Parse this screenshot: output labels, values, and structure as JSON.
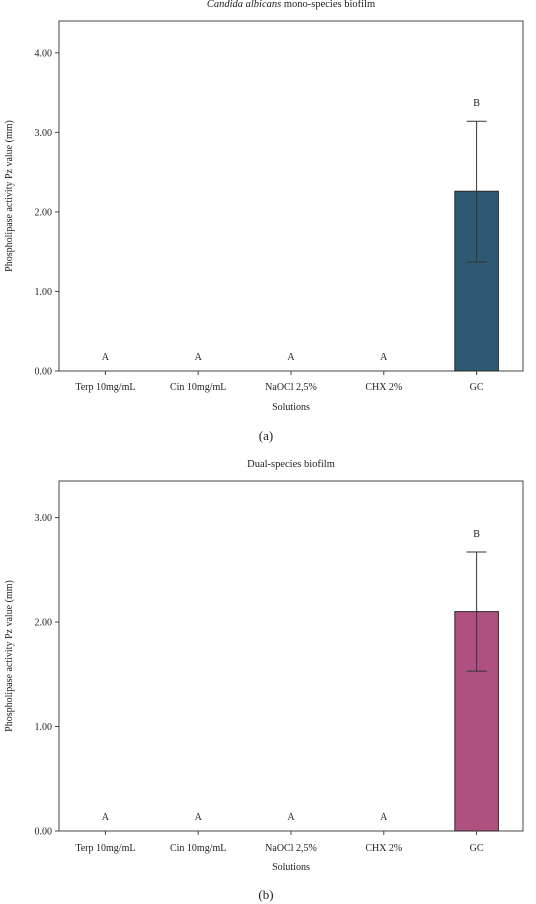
{
  "chart_data": [
    {
      "type": "bar",
      "title": "Candida albicans mono-species biofilm",
      "title_italic": "Candida albicans",
      "title_rest": " mono-species biofilm",
      "xlabel": "Solutions",
      "ylabel": "Phospholipase activity Pz value (mm)",
      "categories": [
        "Terp 10mg/mL",
        "Cin 10mg/mL",
        "NaOCl 2,5%",
        "CHX 2%",
        "GC"
      ],
      "values": [
        0,
        0,
        0,
        0,
        2.26
      ],
      "error_low": [
        null,
        null,
        null,
        null,
        1.37
      ],
      "error_high": [
        null,
        null,
        null,
        null,
        3.14
      ],
      "significance_labels": [
        "A",
        "A",
        "A",
        "A",
        "B"
      ],
      "ylim": [
        0,
        4.4
      ],
      "yticks": [
        "0.00",
        "1.00",
        "2.00",
        "3.00",
        "4.00"
      ],
      "bar_color": "#2d5a72",
      "grid": false,
      "legend": "none",
      "caption": "(a)"
    },
    {
      "type": "bar",
      "title": "Dual-species biofilm",
      "xlabel": "Solutions",
      "ylabel": "Phospholipase activity Pz value (mm)",
      "categories": [
        "Terp 10mg/mL",
        "Cin 10mg/mL",
        "NaOCl 2,5%",
        "CHX 2%",
        "GC"
      ],
      "values": [
        0,
        0,
        0,
        0,
        2.1
      ],
      "error_low": [
        null,
        null,
        null,
        null,
        1.53
      ],
      "error_high": [
        null,
        null,
        null,
        null,
        2.67
      ],
      "significance_labels": [
        "A",
        "A",
        "A",
        "A",
        "B"
      ],
      "ylim": [
        0,
        3.35
      ],
      "yticks": [
        "0.00",
        "1.00",
        "2.00",
        "3.00"
      ],
      "bar_color": "#ae5080",
      "grid": false,
      "legend": "none",
      "caption": "(b)"
    }
  ]
}
